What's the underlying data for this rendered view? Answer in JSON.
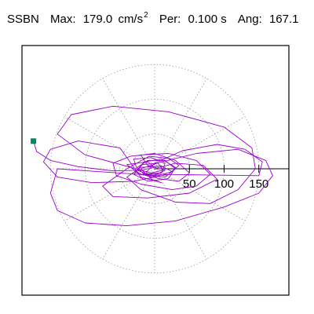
{
  "header": {
    "station": "SSBN",
    "max_label": "Max:",
    "max_value": "179.0",
    "max_unit": "cm/s",
    "max_unit_exp": "2",
    "per_label": "Per:",
    "per_value": "0.100 s",
    "ang_label": "Ang:",
    "ang_value": "167.1"
  },
  "chart_data": {
    "type": "scatter",
    "title": "",
    "max_amplitude": 179.0,
    "angle_deg": 167.1,
    "rings": [
      50,
      100,
      150
    ],
    "tick_labels": [
      "50",
      "100",
      "150"
    ],
    "grid": true,
    "grid_style": "dotted",
    "spokes_every_deg": 30,
    "trace_color": "#9900cc",
    "peak_marker_color": "#008866",
    "peak_point": {
      "x": -174.5,
      "y": 39.8
    },
    "trace": [
      [
        -174.5,
        39.8
      ],
      [
        -170,
        25
      ],
      [
        -150,
        12
      ],
      [
        -110,
        3
      ],
      [
        -60,
        -3
      ],
      [
        -20,
        -2
      ],
      [
        0,
        2
      ],
      [
        -10,
        10
      ],
      [
        -40,
        6
      ],
      [
        -20,
        -8
      ],
      [
        10,
        -6
      ],
      [
        15,
        8
      ],
      [
        -5,
        16
      ],
      [
        -30,
        14
      ],
      [
        -25,
        -2
      ],
      [
        5,
        -14
      ],
      [
        35,
        -18
      ],
      [
        50,
        -6
      ],
      [
        30,
        12
      ],
      [
        0,
        22
      ],
      [
        -35,
        18
      ],
      [
        -60,
        8
      ],
      [
        -55,
        -10
      ],
      [
        -20,
        -22
      ],
      [
        25,
        -30
      ],
      [
        60,
        -25
      ],
      [
        80,
        -8
      ],
      [
        60,
        12
      ],
      [
        20,
        22
      ],
      [
        -20,
        20
      ],
      [
        -10,
        5
      ],
      [
        15,
        -2
      ],
      [
        -5,
        -12
      ],
      [
        -28,
        -5
      ],
      [
        -15,
        10
      ],
      [
        10,
        14
      ],
      [
        30,
        2
      ],
      [
        20,
        -14
      ],
      [
        -10,
        -18
      ],
      [
        -30,
        -8
      ],
      [
        -18,
        6
      ],
      [
        5,
        8
      ],
      [
        12,
        -2
      ],
      [
        -5,
        -6
      ],
      [
        -100,
        20
      ],
      [
        -140,
        50
      ],
      [
        -120,
        78
      ],
      [
        -60,
        90
      ],
      [
        20,
        82
      ],
      [
        100,
        60
      ],
      [
        140,
        30
      ],
      [
        145,
        0
      ],
      [
        120,
        -30
      ],
      [
        80,
        -50
      ],
      [
        30,
        -48
      ],
      [
        -20,
        -30
      ],
      [
        -40,
        -12
      ],
      [
        -20,
        2
      ],
      [
        10,
        4
      ],
      [
        25,
        -4
      ],
      [
        5,
        -10
      ],
      [
        -140,
        0
      ],
      [
        -150,
        -35
      ],
      [
        -140,
        -60
      ],
      [
        -100,
        -78
      ],
      [
        -40,
        -82
      ],
      [
        30,
        -75
      ],
      [
        100,
        -55
      ],
      [
        150,
        -35
      ],
      [
        170,
        -10
      ],
      [
        160,
        12
      ],
      [
        120,
        28
      ],
      [
        60,
        22
      ],
      [
        10,
        10
      ],
      [
        -20,
        0
      ],
      [
        -10,
        -10
      ],
      [
        15,
        -12
      ],
      [
        30,
        0
      ],
      [
        15,
        12
      ],
      [
        -10,
        12
      ],
      [
        -25,
        2
      ],
      [
        -15,
        -8
      ],
      [
        8,
        -8
      ],
      [
        150,
        -10
      ],
      [
        155,
        10
      ],
      [
        130,
        28
      ],
      [
        90,
        35
      ],
      [
        40,
        26
      ],
      [
        0,
        8
      ],
      [
        -12,
        -5
      ],
      [
        -5,
        -15
      ],
      [
        10,
        -20
      ],
      [
        -20,
        -12
      ],
      [
        -50,
        30
      ],
      [
        -110,
        40
      ],
      [
        -150,
        28
      ],
      [
        -160,
        10
      ],
      [
        -140,
        -12
      ],
      [
        -90,
        -20
      ],
      [
        -30,
        -18
      ],
      [
        20,
        -8
      ],
      [
        35,
        5
      ],
      [
        20,
        15
      ],
      [
        -8,
        18
      ],
      [
        -40,
        0
      ],
      [
        -75,
        -25
      ],
      [
        -60,
        -40
      ],
      [
        -10,
        -42
      ],
      [
        50,
        -35
      ],
      [
        90,
        -15
      ],
      [
        70,
        5
      ],
      [
        30,
        8
      ],
      [
        0,
        0
      ]
    ]
  }
}
